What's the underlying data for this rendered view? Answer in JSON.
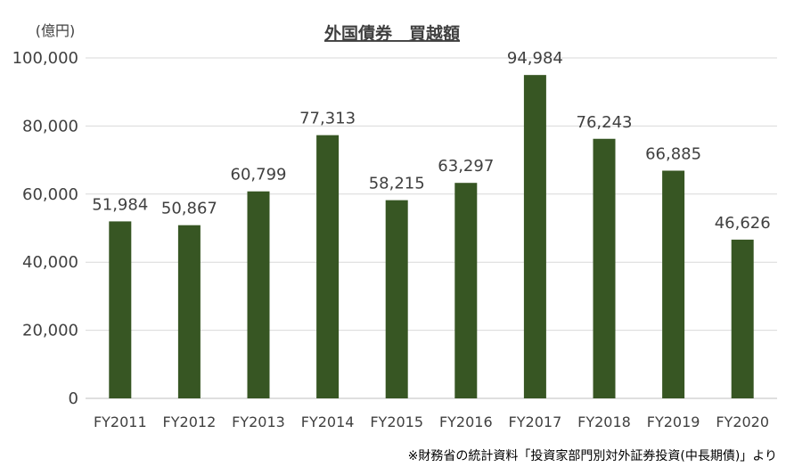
{
  "chart_data": {
    "type": "bar",
    "title": "外国債券　買越額",
    "unit_label": "(億円)",
    "xlabel": "",
    "ylabel": "",
    "categories": [
      "FY2011",
      "FY2012",
      "FY2013",
      "FY2014",
      "FY2015",
      "FY2016",
      "FY2017",
      "FY2018",
      "FY2019",
      "FY2020"
    ],
    "values": [
      51984,
      50867,
      60799,
      77313,
      58215,
      63297,
      94984,
      76243,
      66885,
      46626
    ],
    "value_labels": [
      "51,984",
      "50,867",
      "60,799",
      "77,313",
      "58,215",
      "63,297",
      "94,984",
      "76,243",
      "66,885",
      "46,626"
    ],
    "ylim": [
      0,
      100000
    ],
    "yticks": [
      0,
      20000,
      40000,
      60000,
      80000,
      100000
    ],
    "ytick_labels": [
      "0",
      "20,000",
      "40,000",
      "60,000",
      "80,000",
      "100,000"
    ],
    "grid": true,
    "legend": "none",
    "bar_color": "#375623",
    "source_note": "※財務省の統計資料「投資家部門別対外証券投資(中長期債)」より"
  }
}
